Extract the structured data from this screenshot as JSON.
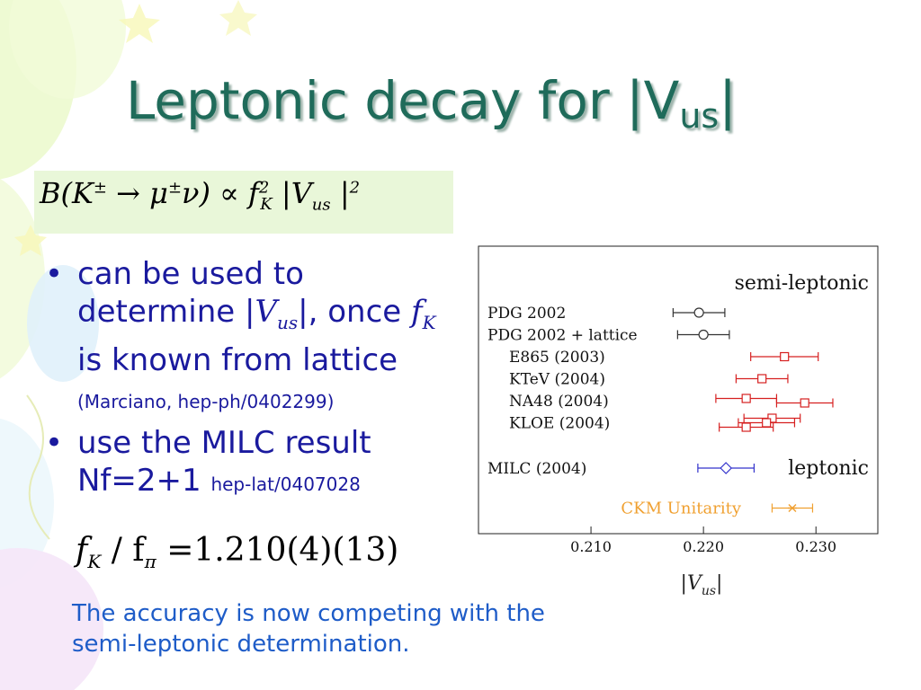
{
  "slide": {
    "title": "Leptonic decay for |V",
    "title_sub": "us",
    "title_end": "|",
    "formula": {
      "a": "B(K",
      "a_sup": "±",
      "b": " → μ",
      "b_sup": "±",
      "c": "ν) ∝ f",
      "c_sup": "2",
      "c_sub": "K",
      "d": " |V",
      "d_sub": "us",
      "e": " |",
      "e_sup": "2"
    },
    "bullets": {
      "b1_a": "can be used to determine |",
      "b1_v": "V",
      "b1_vsub": "us",
      "b1_b": "|, once ",
      "b1_f": "f",
      "b1_fsub": "K",
      "b1_c": " is known from lattice ",
      "b1_ref": "(Marciano, hep-ph/0402299)",
      "b2_a": "use the MILC result Nf=2+1 ",
      "b2_ref": "hep-lat/0407028"
    },
    "ratio": {
      "a": "f",
      "a_sub": "K",
      "b": " / f",
      "b_sub": "π",
      "c": " =1.210(4)(13)"
    },
    "note": "The accuracy is now competing with the semi-leptonic determination."
  },
  "colors": {
    "title": "#1f6b5a",
    "bullet_text": "#1a1a9e",
    "note_text": "#1e5cc8",
    "formula_bg": "#e9f7d9",
    "pdg": "#333333",
    "semi_leptonic": "#d62020",
    "milc": "#3333cc",
    "ckm": "#f0a030"
  },
  "chart_data": {
    "type": "scatter",
    "xlabel": "|V",
    "xlabel_sub": "us",
    "xlabel_end": "|",
    "xlim": [
      0.2,
      0.2355
    ],
    "xticks": [
      0.21,
      0.22,
      0.23
    ],
    "xtick_labels": [
      "0.210",
      "0.220",
      "0.230"
    ],
    "annotations": [
      "semi-leptonic",
      "leptonic"
    ],
    "grid": false,
    "rows": [
      {
        "label": "PDG 2002",
        "points": [
          {
            "value": 0.2196,
            "err": 0.0023
          }
        ],
        "color": "#333333",
        "marker": "circle",
        "indent": false
      },
      {
        "label": "PDG 2002 + lattice",
        "points": [
          {
            "value": 0.22,
            "err": 0.0023
          }
        ],
        "color": "#333333",
        "marker": "circle",
        "indent": false
      },
      {
        "label": "E865 (2003)",
        "points": [
          {
            "value": 0.2272,
            "err": 0.003
          }
        ],
        "color": "#d62020",
        "marker": "square",
        "indent": true
      },
      {
        "label": "KTeV (2004)",
        "points": [
          {
            "value": 0.2252,
            "err": 0.0023
          }
        ],
        "color": "#d62020",
        "marker": "square",
        "indent": true
      },
      {
        "label": "NA48 (2004)",
        "points": [
          {
            "value": 0.2238,
            "err": 0.0027
          },
          {
            "value": 0.229,
            "err": 0.0025
          }
        ],
        "color": "#d62020",
        "marker": "square",
        "indent": true
      },
      {
        "label": "KLOE (2004)",
        "points": [
          {
            "value": 0.2261,
            "err": 0.0025
          },
          {
            "value": 0.2256,
            "err": 0.0025
          },
          {
            "value": 0.2238,
            "err": 0.0024
          }
        ],
        "color": "#d62020",
        "marker": "square",
        "indent": true
      },
      {
        "label": "MILC (2004)",
        "points": [
          {
            "value": 0.222,
            "err": 0.0025
          }
        ],
        "color": "#3333cc",
        "marker": "diamond",
        "indent": false,
        "gap_before": true
      },
      {
        "label": "CKM Unitarity",
        "points": [
          {
            "value": 0.2279,
            "err": 0.0018
          }
        ],
        "color": "#f0a030",
        "marker": "star",
        "indent": false,
        "gap_before": true,
        "label_right": true
      }
    ]
  }
}
